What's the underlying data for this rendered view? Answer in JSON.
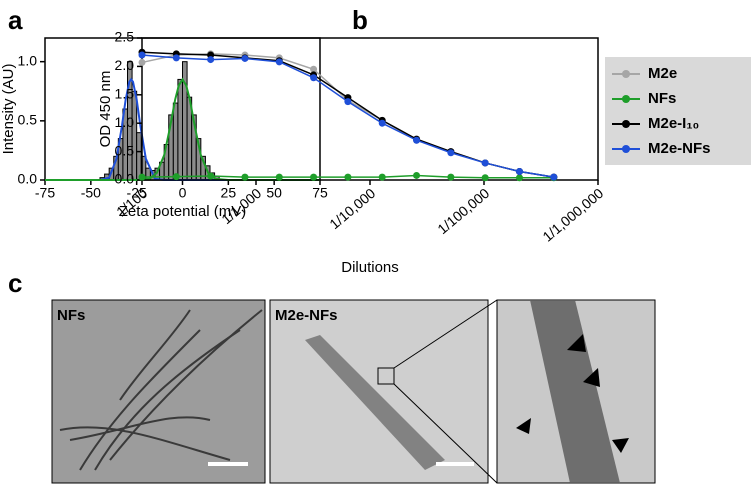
{
  "panel_labels": [
    "a",
    "b",
    "c"
  ],
  "chart_data": [
    {
      "type": "histogram",
      "xlabel": "Zeta potential (mV)",
      "ylabel": "Intensity (AU)",
      "bins": [
        -45,
        -42.5,
        -40,
        -37.5,
        -35,
        -32.5,
        -30,
        -27.5,
        -25,
        -22.5,
        -20,
        -17.5,
        -15,
        -12.5,
        -10,
        -7.5,
        -5,
        -2.5,
        0,
        2.5,
        5,
        7.5,
        10,
        12.5,
        15,
        17.5,
        20
      ],
      "values": [
        0.02,
        0.05,
        0.1,
        0.2,
        0.35,
        0.6,
        1.0,
        0.75,
        0.4,
        0.2,
        0.1,
        0.08,
        0.1,
        0.15,
        0.3,
        0.55,
        0.65,
        0.85,
        1.0,
        0.7,
        0.55,
        0.35,
        0.2,
        0.12,
        0.06,
        0.03
      ],
      "color": "#8c8c8c",
      "series": [
        {
          "color": "#1f4fd8",
          "x": [
            -75,
            -45,
            -40,
            -36,
            -33,
            -31,
            -29,
            -28,
            -27,
            -25,
            -23,
            -20,
            -15,
            -10,
            0,
            25,
            75
          ],
          "values": [
            0,
            0,
            0.02,
            0.18,
            0.46,
            0.68,
            0.83,
            0.85,
            0.83,
            0.68,
            0.46,
            0.18,
            0.01,
            0,
            0,
            0,
            0
          ]
        },
        {
          "color": "#1e9e2a",
          "x": [
            -75,
            -25,
            -18,
            -14,
            -10,
            -7,
            -4,
            -2,
            0,
            2,
            4,
            7,
            10,
            14,
            18,
            25,
            75
          ],
          "values": [
            0,
            0,
            0.01,
            0.06,
            0.21,
            0.43,
            0.68,
            0.8,
            0.85,
            0.8,
            0.68,
            0.43,
            0.21,
            0.06,
            0.01,
            0,
            0
          ]
        }
      ],
      "xlim": [
        -75,
        75
      ],
      "xticks": [
        -75,
        -50,
        -25,
        0,
        25,
        50,
        75
      ],
      "ylim": [
        0,
        1.2
      ],
      "yticks": [
        {
          "value": 0,
          "label": "0.0"
        },
        {
          "value": 0.5,
          "label": "0.5"
        },
        {
          "value": 1,
          "label": "1.0"
        }
      ]
    },
    {
      "type": "line",
      "xlabel": "Dilutions",
      "ylabel": "OD 450 nm",
      "xscale": "log",
      "legend": "right",
      "x": [
        100,
        200,
        400,
        800,
        1600,
        3200,
        6400,
        12800,
        25600,
        51200,
        102400,
        204800,
        409600
      ],
      "series": [
        {
          "name": "M2e",
          "color": "#a6a6a6",
          "values": [
            2.07,
            2.2,
            2.22,
            2.2,
            2.15,
            1.95,
            1.4,
            1.05,
            0.7,
            0.5,
            0.3,
            0.15,
            0.05
          ]
        },
        {
          "name": "NFs",
          "color": "#1e9e2a",
          "values": [
            0.05,
            0.06,
            0.07,
            0.05,
            0.05,
            0.05,
            0.05,
            0.05,
            0.08,
            0.05,
            0.04,
            0.04,
            0.04
          ]
        },
        {
          "name": "M2e-I₁₀",
          "color": "#000000",
          "values": [
            2.25,
            2.22,
            2.2,
            2.15,
            2.1,
            1.85,
            1.45,
            1.05,
            0.72,
            0.5,
            0.3,
            0.15,
            0.05
          ]
        },
        {
          "name": "M2e-NFs",
          "color": "#1f4fd8",
          "values": [
            2.2,
            2.15,
            2.12,
            2.14,
            2.08,
            1.8,
            1.38,
            1.0,
            0.7,
            0.48,
            0.3,
            0.15,
            0.05
          ]
        }
      ],
      "xlim": [
        100,
        1000000
      ],
      "xticks": [
        {
          "value": 100,
          "label": "1/100"
        },
        {
          "value": 1000,
          "label": "1/1,000"
        },
        {
          "value": 10000,
          "label": "1/10,000"
        },
        {
          "value": 100000,
          "label": "1/100,000"
        },
        {
          "value": 1000000,
          "label": "1/1,000,000"
        }
      ],
      "ylim": [
        0,
        2.5
      ],
      "yticks": [
        {
          "value": 0,
          "label": "0.0"
        },
        {
          "value": 0.5,
          "label": "0.5"
        },
        {
          "value": 1,
          "label": "1.0"
        },
        {
          "value": 1.5,
          "label": "1.5"
        },
        {
          "value": 2,
          "label": "2.0"
        },
        {
          "value": 2.5,
          "label": "2.5"
        }
      ]
    }
  ],
  "micrographs": [
    {
      "label": "NFs"
    },
    {
      "label": "M2e-NFs"
    }
  ]
}
